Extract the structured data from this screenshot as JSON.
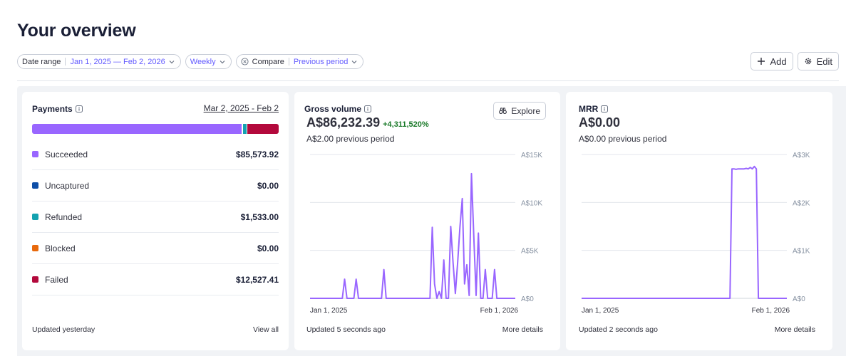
{
  "page": {
    "title": "Your overview"
  },
  "filters": {
    "date_range": {
      "label": "Date range",
      "value": "Jan 1, 2025 — Feb 2, 2026"
    },
    "interval": {
      "value": "Weekly"
    },
    "compare": {
      "label": "Compare",
      "value": "Previous period"
    }
  },
  "actions": {
    "add": "Add",
    "edit": "Edit"
  },
  "payments": {
    "title": "Payments",
    "date_link": "Mar 2, 2025 - Feb 2",
    "bar_fractions": {
      "succeeded": 0.85,
      "refunded": 0.015,
      "failed": 0.125
    },
    "items": [
      {
        "label": "Succeeded",
        "amount": "$85,573.92",
        "color": "#9966ff"
      },
      {
        "label": "Uncaptured",
        "amount": "$0.00",
        "color": "#0e4ea7"
      },
      {
        "label": "Refunded",
        "amount": "$1,533.00",
        "color": "#13a2b0"
      },
      {
        "label": "Blocked",
        "amount": "$0.00",
        "color": "#e8690c"
      },
      {
        "label": "Failed",
        "amount": "$12,527.41",
        "color": "#b3093c"
      }
    ],
    "footer_left": "Updated yesterday",
    "footer_right": "View all"
  },
  "gross_volume": {
    "title": "Gross volume",
    "value": "A$86,232.39",
    "change": "+4,311,520%",
    "previous": "A$2.00 previous period",
    "explore": "Explore",
    "footer_left": "Updated 5 seconds ago",
    "footer_right": "More details"
  },
  "mrr": {
    "title": "MRR",
    "value": "A$0.00",
    "previous": "A$0.00 previous period",
    "footer_left": "Updated 2 seconds ago",
    "footer_right": "More details"
  },
  "colors": {
    "accent": "#635bff",
    "line": "#9966ff",
    "positive": "#1a7a29"
  },
  "chart_data": [
    {
      "type": "line",
      "name": "gross-volume",
      "x_labels": [
        "Jan 1, 2025",
        "Feb 1, 2026"
      ],
      "y_ticks": [
        "A$0",
        "A$5K",
        "A$10K",
        "A$15K"
      ],
      "ylim": [
        0,
        15000
      ],
      "grid": true,
      "values": [
        0,
        0,
        0,
        0,
        0,
        0,
        0,
        0,
        0,
        0,
        0,
        0,
        0,
        0,
        0,
        2000,
        0,
        0,
        0,
        0,
        2000,
        0,
        0,
        0,
        0,
        0,
        0,
        0,
        0,
        0,
        0,
        0,
        3000,
        0,
        0,
        0,
        0,
        0,
        0,
        0,
        0,
        0,
        0,
        0,
        0,
        0,
        0,
        0,
        0,
        0,
        0,
        0,
        0,
        7400,
        1500,
        0,
        700,
        0,
        4000,
        0,
        0,
        7500,
        3800,
        500,
        3700,
        7400,
        10400,
        1500,
        3500,
        300,
        13000,
        6400,
        300,
        6800,
        0,
        0,
        3000,
        0,
        0,
        0,
        3000,
        0,
        0,
        0,
        0,
        0,
        0,
        0,
        0,
        0
      ]
    },
    {
      "type": "line",
      "name": "mrr",
      "x_labels": [
        "Jan 1, 2025",
        "Feb 1, 2026"
      ],
      "y_ticks": [
        "A$0",
        "A$1K",
        "A$2K",
        "A$3K"
      ],
      "ylim": [
        0,
        3000
      ],
      "grid": true,
      "values": [
        0,
        0,
        0,
        0,
        0,
        0,
        0,
        0,
        0,
        0,
        0,
        0,
        0,
        0,
        0,
        0,
        0,
        0,
        0,
        0,
        0,
        0,
        0,
        0,
        0,
        0,
        0,
        0,
        0,
        0,
        0,
        0,
        0,
        0,
        0,
        0,
        0,
        0,
        0,
        0,
        0,
        0,
        0,
        0,
        0,
        0,
        0,
        0,
        0,
        0,
        0,
        0,
        0,
        0,
        0,
        0,
        0,
        0,
        0,
        0,
        0,
        0,
        0,
        0,
        0,
        0,
        0,
        0,
        0,
        0,
        0,
        0,
        0,
        0,
        2700,
        2700,
        2690,
        2700,
        2700,
        2700,
        2700,
        2710,
        2700,
        2730,
        2700,
        2750,
        2700,
        0,
        0,
        0,
        0,
        0,
        0,
        0,
        0,
        0,
        0,
        0,
        0,
        0,
        0,
        0
      ]
    }
  ]
}
